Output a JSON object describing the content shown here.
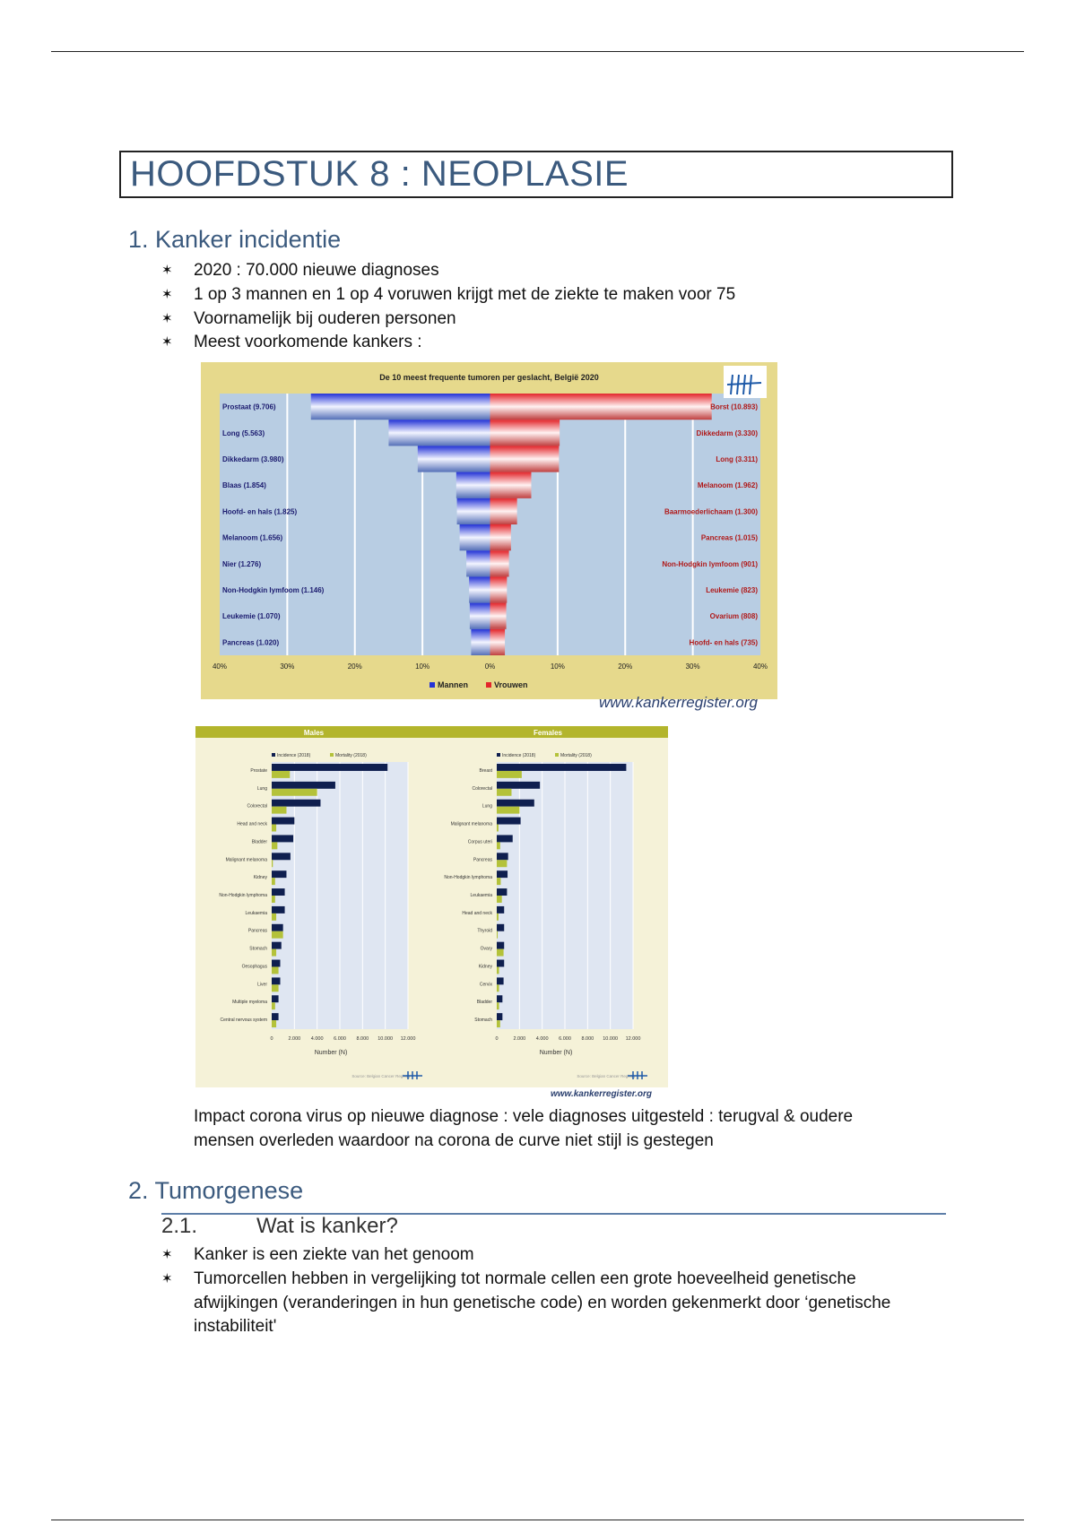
{
  "document": {
    "chapter_title": "HOOFDSTUK 8 : NEOPLASIE",
    "section1": {
      "heading": "1. Kanker incidentie",
      "bullets": [
        "2020 : 70.000 nieuwe diagnoses",
        "1 op 3 mannen en 1 op 4 voruwen krijgt met de ziekte te maken voor 75",
        "Voornamelijk bij ouderen personen",
        "Meest voorkomende kankers :"
      ],
      "figure1_caption": "www.kankerregister.org",
      "figure2_caption": "www.kankerregister.org",
      "paragraph_line1": "Impact corona virus op nieuwe diagnose : vele diagnoses uitgesteld : terugval & oudere",
      "paragraph_line2": "mensen overleden waardoor na corona de curve niet stijl is gestegen"
    },
    "section2": {
      "heading": "2. Tumorgenese",
      "sub_number": "2.1.",
      "sub_heading": "Wat is kanker?",
      "bullets": [
        "Kanker is een ziekte van het genoom",
        "Tumorcellen hebben in vergelijking tot normale cellen een grote hoeveelheid genetische"
      ],
      "bullet2_line2": "afwijkingen (veranderingen in hun genetische code) en worden gekenmerkt door ‘genetische",
      "bullet2_line3": "instabiliteit'"
    },
    "bullet_icon": "asterisk-icon",
    "heading_color": "#3b5a7e"
  },
  "chart_data": [
    {
      "type": "bar",
      "orientation": "horizontal-pyramid",
      "title": "De 10 meest frequente tumoren per geslacht, België 2020",
      "x_ticks": [
        "40%",
        "30%",
        "20%",
        "10%",
        "0%",
        "10%",
        "20%",
        "30%",
        "40%"
      ],
      "xlim": [
        -40,
        40
      ],
      "grid": true,
      "legend_position": "bottom",
      "series": [
        {
          "name": "Mannen",
          "color": "#2433d6",
          "labels": [
            "Prostaat (9.706)",
            "Long (5.563)",
            "Dikkedarm (3.980)",
            "Blaas (1.854)",
            "Hoofd- en hals (1.825)",
            "Melanoom (1.656)",
            "Nier (1.276)",
            "Non-Hodgkin lymfoom (1.146)",
            "Leukemie (1.070)",
            "Pancreas (1.020)"
          ],
          "values": [
            26.5,
            15,
            10.7,
            5,
            4.9,
            4.5,
            3.5,
            3.1,
            3,
            2.8
          ]
        },
        {
          "name": "Vrouwen",
          "color": "#e3262b",
          "labels": [
            "Borst (10.893)",
            "Dikkedarm (3.330)",
            "Long (3.311)",
            "Melanoom (1.962)",
            "Baarmoederlichaam (1.300)",
            "Pancreas (1.015)",
            "Non-Hodgkin lymfoom (901)",
            "Leukemie (823)",
            "Ovarium (808)",
            "Hoofd- en hals (735)"
          ],
          "values": [
            32.8,
            10.3,
            10.2,
            6.1,
            4,
            3.1,
            2.8,
            2.5,
            2.4,
            2.2
          ]
        }
      ],
      "background_color": "#e6d98c",
      "plot_color": "#b8cde3"
    },
    {
      "type": "bar",
      "orientation": "horizontal",
      "panels": [
        {
          "title": "Males",
          "categories": [
            "Prostate",
            "Lung",
            "Colorectal",
            "Head and neck",
            "Bladder",
            "Malignant melanoma",
            "Kidney",
            "Non-Hodgkin lymphoma",
            "Leukaemia",
            "Pancreas",
            "Stomach",
            "Oesophagus",
            "Liver",
            "Multiple myeloma",
            "Central nervous system"
          ],
          "series": [
            {
              "name": "Incidence (2018)",
              "values": [
                10200,
                5600,
                4300,
                2000,
                1900,
                1650,
                1300,
                1150,
                1150,
                1000,
                850,
                750,
                750,
                600,
                600
              ]
            },
            {
              "name": "Mortality (2018)",
              "values": [
                1600,
                4000,
                1300,
                400,
                500,
                100,
                300,
                300,
                400,
                1000,
                400,
                600,
                600,
                300,
                400
              ]
            }
          ]
        },
        {
          "title": "Females",
          "categories": [
            "Breast",
            "Colorectal",
            "Lung",
            "Malignant melanoma",
            "Corpus uteri",
            "Pancreas",
            "Non-Hodgkin lymphoma",
            "Leukaemia",
            "Head and neck",
            "Thyroid",
            "Ovary",
            "Kidney",
            "Cervix",
            "Bladder",
            "Stomach"
          ],
          "series": [
            {
              "name": "Incidence (2018)",
              "values": [
                11400,
                3800,
                3300,
                2100,
                1400,
                1000,
                950,
                900,
                650,
                650,
                650,
                650,
                600,
                500,
                500
              ]
            },
            {
              "name": "Mortality (2018)",
              "values": [
                2200,
                1300,
                2000,
                150,
                300,
                900,
                350,
                450,
                150,
                50,
                600,
                200,
                200,
                200,
                300
              ]
            }
          ]
        }
      ],
      "x_ticks": [
        "0",
        "2.000",
        "4.000",
        "6.000",
        "8.000",
        "10.000",
        "12.000"
      ],
      "xlim": [
        0,
        12000
      ],
      "xlabel": "Number (N)",
      "source": "Source: Belgian Cancer Registry",
      "grid": true,
      "legend_position": "top",
      "colors": {
        "incidence": "#0f1f4f",
        "mortality": "#b4c23a",
        "header": "#b3b52c",
        "background": "#f5f2d8",
        "plot": "#dfe6f2"
      }
    }
  ]
}
